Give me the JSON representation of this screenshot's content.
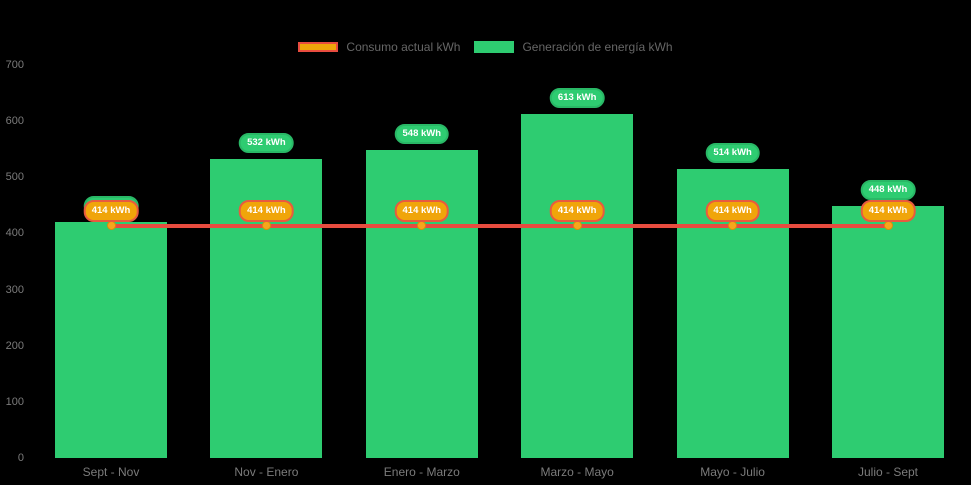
{
  "legend": {
    "items": [
      {
        "label": "Consumo actual kWh"
      },
      {
        "label": "Generación de energía kWh"
      }
    ]
  },
  "chart_data": {
    "type": "bar",
    "categories": [
      "Sept - Nov",
      "Nov - Enero",
      "Enero - Marzo",
      "Marzo - Mayo",
      "Mayo - Julio",
      "Julio - Sept"
    ],
    "series": [
      {
        "name": "Consumo actual kWh",
        "type": "line",
        "values": [
          414,
          414,
          414,
          414,
          414,
          414
        ],
        "color": "#E84C3F",
        "marker_fill": "#F5A71C",
        "marker_border": "#DD8E07",
        "label_fill": "#F0A50A",
        "label_border": "#E85B3F",
        "label_text_color": "#FFFFFF"
      },
      {
        "name": "Generación de energía kWh",
        "type": "bar",
        "values": [
          420,
          532,
          548,
          613,
          514,
          448
        ],
        "color": "#2ECC71",
        "label_fill": "#2ECC71",
        "label_border": "#29B866",
        "label_text_color": "#FFFFFF"
      }
    ],
    "value_suffix": " kWh",
    "ylim": [
      0,
      700
    ],
    "yticks": [
      0,
      100,
      200,
      300,
      400,
      500,
      600,
      700
    ],
    "grid": false,
    "legend_position": "top",
    "background": "#000000",
    "axis_text_color": "#7B7B7B",
    "title": "",
    "xlabel": "",
    "ylabel": ""
  }
}
